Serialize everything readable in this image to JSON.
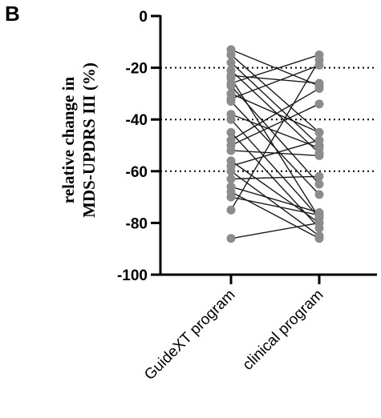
{
  "panel_label": "B",
  "chart_data": {
    "type": "scatter",
    "style": "paired before-after plot",
    "categories": [
      "GuideXT program",
      "clinical program"
    ],
    "ylabel_lines": [
      "relative change in",
      "MDS-UPDRS III (%)"
    ],
    "ylim": [
      -100,
      0
    ],
    "yticks": [
      0,
      -20,
      -40,
      -60,
      -80,
      -100
    ],
    "ytick_labels": [
      "0",
      "-20",
      "-40",
      "-60",
      "-80",
      "-100"
    ],
    "reference_lines": [
      -20,
      -40,
      -60
    ],
    "reference_line_style": "dotted",
    "marker_color": "#8c8c8c",
    "line_color": "#1a1a1a",
    "pairs": [
      {
        "guidext": -13,
        "clinical": -27
      },
      {
        "guidext": -15,
        "clinical": -45
      },
      {
        "guidext": -18,
        "clinical": -50
      },
      {
        "guidext": -21,
        "clinical": -53
      },
      {
        "guidext": -23,
        "clinical": -26
      },
      {
        "guidext": -24,
        "clinical": -78
      },
      {
        "guidext": -26,
        "clinical": -15
      },
      {
        "guidext": -27,
        "clinical": -65
      },
      {
        "guidext": -30,
        "clinical": -45
      },
      {
        "guidext": -32,
        "clinical": -19
      },
      {
        "guidext": -33,
        "clinical": -69
      },
      {
        "guidext": -38,
        "clinical": -51
      },
      {
        "guidext": -40,
        "clinical": -78
      },
      {
        "guidext": -45,
        "clinical": -82
      },
      {
        "guidext": -48,
        "clinical": -28
      },
      {
        "guidext": -50,
        "clinical": -34
      },
      {
        "guidext": -52,
        "clinical": -54
      },
      {
        "guidext": -56,
        "clinical": -80
      },
      {
        "guidext": -58,
        "clinical": -48
      },
      {
        "guidext": -60,
        "clinical": -85
      },
      {
        "guidext": -63,
        "clinical": -62
      },
      {
        "guidext": -66,
        "clinical": -76
      },
      {
        "guidext": -68,
        "clinical": -86
      },
      {
        "guidext": -70,
        "clinical": -77
      },
      {
        "guidext": -75,
        "clinical": -17
      },
      {
        "guidext": -86,
        "clinical": -80
      }
    ]
  }
}
